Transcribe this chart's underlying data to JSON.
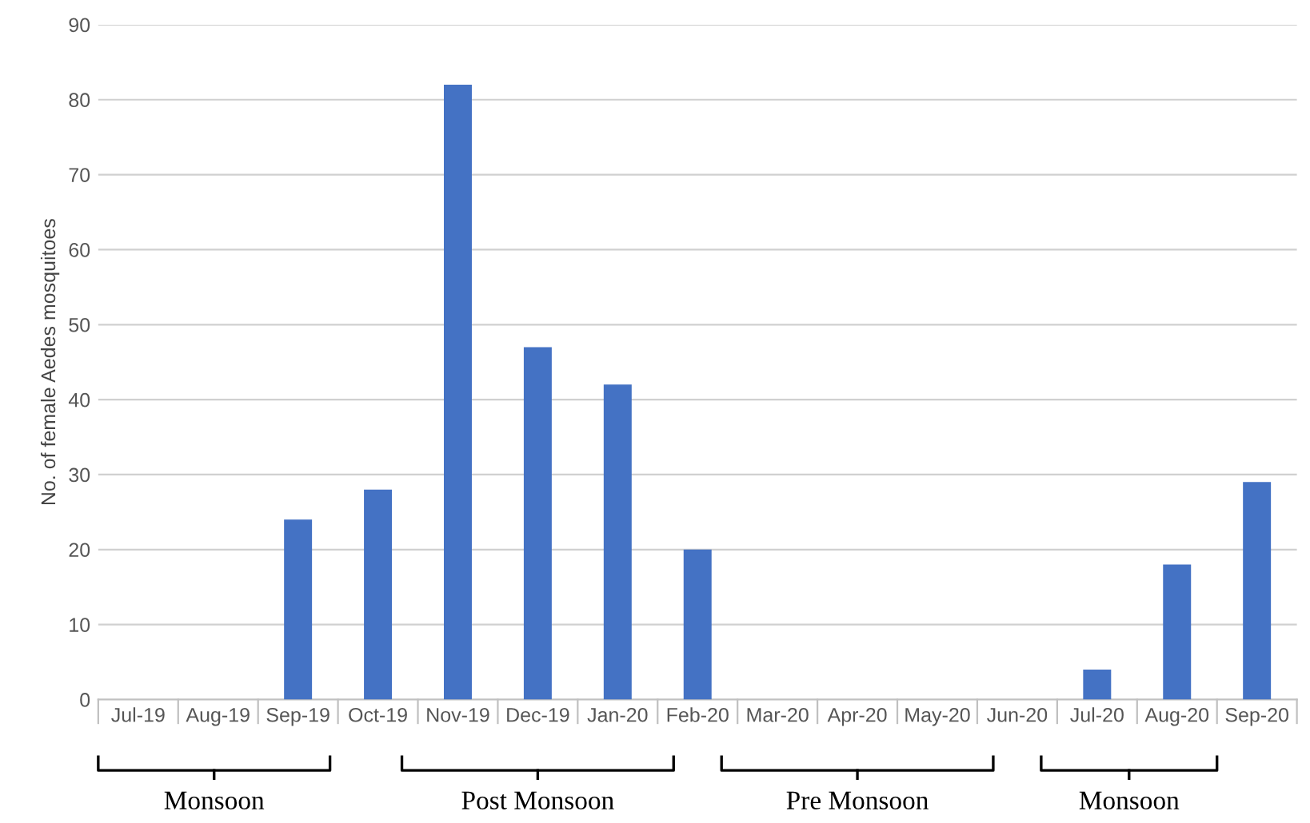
{
  "chart_data": {
    "type": "bar",
    "ylabel": "No. of female Aedes mosquitoes",
    "categories": [
      "Jul-19",
      "Aug-19",
      "Sep-19",
      "Oct-19",
      "Nov-19",
      "Dec-19",
      "Jan-20",
      "Feb-20",
      "Mar-20",
      "Apr-20",
      "May-20",
      "Jun-20",
      "Jul-20",
      "Aug-20",
      "Sep-20"
    ],
    "values": [
      0,
      0,
      24,
      28,
      82,
      47,
      42,
      20,
      0,
      0,
      0,
      0,
      4,
      18,
      29
    ],
    "color": "#4472c4",
    "ylim": [
      0,
      90
    ],
    "yticks": [
      0,
      10,
      20,
      30,
      40,
      50,
      60,
      70,
      80,
      90
    ],
    "grid": "y",
    "annotations": [
      "Monsoon",
      "Post Monsoon",
      "Pre Monsoon",
      "Monsoon"
    ]
  }
}
